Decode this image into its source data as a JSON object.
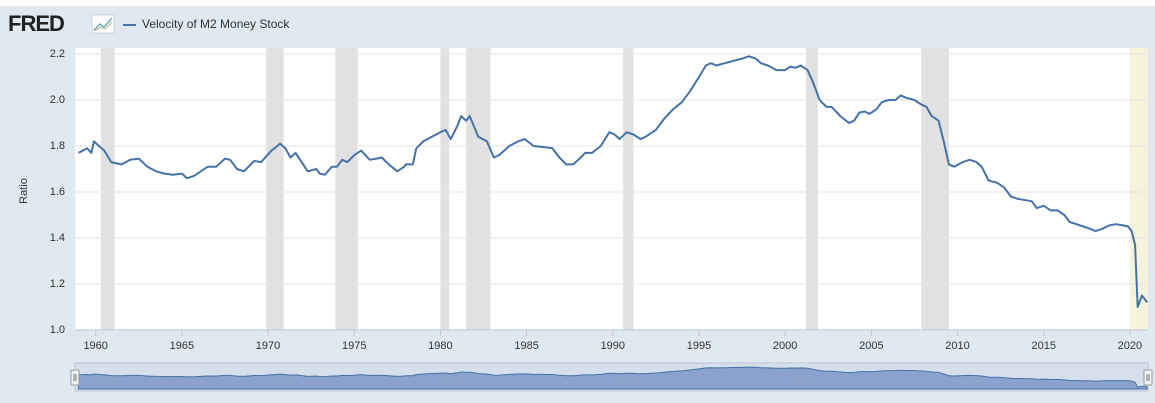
{
  "logo": "FRED",
  "chart_data": {
    "type": "line",
    "y_label": "Ratio",
    "xlim": [
      1958.8,
      2021.05
    ],
    "ylim": [
      1.0,
      2.2
    ],
    "xticks": [
      1960,
      1965,
      1970,
      1975,
      1980,
      1985,
      1990,
      1995,
      2000,
      2005,
      2010,
      2015,
      2020
    ],
    "yticks": [
      {
        "value": 1,
        "label": "1.0"
      },
      1.2,
      1.4,
      1.6,
      1.8,
      {
        "value": 2,
        "label": "2.0"
      },
      2.2
    ],
    "grid": true,
    "recessions": [
      [
        1960.3,
        1961.1
      ],
      [
        1969.9,
        1970.9
      ],
      [
        1973.9,
        1975.2
      ],
      [
        1980.0,
        1980.5
      ],
      [
        1981.5,
        1982.9
      ],
      [
        1990.6,
        1991.2
      ],
      [
        2001.2,
        2001.9
      ],
      [
        2007.9,
        2009.5
      ]
    ],
    "recession_color": "#e1e1e1",
    "highlight": [
      2020.0,
      2021.05
    ],
    "highlight_color": "#f6f3dc",
    "navigator_ticks": [
      1960,
      1970,
      1980,
      1990,
      2000,
      2010
    ],
    "x": [
      1959.0,
      1959.5,
      1959.75,
      1959.9,
      1960.5,
      1960.9,
      1961.5,
      1962.0,
      1962.5,
      1963.0,
      1963.5,
      1964.0,
      1964.5,
      1965.0,
      1965.3,
      1965.7,
      1966.5,
      1967.0,
      1967.5,
      1967.8,
      1968.2,
      1968.6,
      1969.2,
      1969.6,
      1970.2,
      1970.7,
      1971.0,
      1971.3,
      1971.6,
      1972.3,
      1972.8,
      1973.0,
      1973.3,
      1973.7,
      1974.0,
      1974.3,
      1974.6,
      1975.0,
      1975.4,
      1975.9,
      1976.3,
      1976.6,
      1977.0,
      1977.5,
      1977.9,
      1978.0,
      1978.4,
      1978.6,
      1979.0,
      1979.5,
      1980.0,
      1980.3,
      1980.6,
      1981.0,
      1981.2,
      1981.5,
      1981.7,
      1982.2,
      1982.7,
      1983.1,
      1983.4,
      1984.0,
      1984.5,
      1984.9,
      1985.4,
      1986.0,
      1986.5,
      1986.9,
      1987.3,
      1987.7,
      1988.0,
      1988.4,
      1988.8,
      1989.3,
      1989.8,
      1990.1,
      1990.4,
      1990.8,
      1991.2,
      1991.6,
      1991.9,
      1992.5,
      1993.0,
      1993.5,
      1994.0,
      1994.5,
      1995.0,
      1995.4,
      1995.7,
      1996.0,
      1996.5,
      1997.0,
      1997.5,
      1997.9,
      1998.3,
      1998.6,
      1999.0,
      1999.5,
      2000.0,
      2000.3,
      2000.6,
      2000.9,
      2001.3,
      2001.6,
      2002.0,
      2002.4,
      2002.7,
      2003.2,
      2003.7,
      2004.0,
      2004.3,
      2004.6,
      2004.9,
      2005.3,
      2005.6,
      2006.0,
      2006.4,
      2006.7,
      2007.0,
      2007.5,
      2007.9,
      2008.2,
      2008.5,
      2008.9,
      2009.2,
      2009.5,
      2009.8,
      2010.3,
      2010.7,
      2011.1,
      2011.4,
      2011.8,
      2012.3,
      2012.7,
      2013.1,
      2013.5,
      2013.9,
      2014.3,
      2014.6,
      2015.0,
      2015.4,
      2015.8,
      2016.2,
      2016.5,
      2016.9,
      2017.3,
      2017.7,
      2018.0,
      2018.4,
      2018.8,
      2019.2,
      2019.6,
      2019.9,
      2020.1,
      2020.3,
      2020.45,
      2020.7,
      2021.0
    ],
    "series": [
      {
        "name": "Velocity of M2 Money Stock",
        "color": "#4572a7",
        "values": [
          1.77,
          1.79,
          1.77,
          1.82,
          1.78,
          1.73,
          1.72,
          1.74,
          1.745,
          1.71,
          1.69,
          1.68,
          1.675,
          1.68,
          1.66,
          1.67,
          1.71,
          1.71,
          1.745,
          1.74,
          1.7,
          1.69,
          1.735,
          1.73,
          1.78,
          1.81,
          1.79,
          1.75,
          1.77,
          1.69,
          1.7,
          1.68,
          1.675,
          1.71,
          1.71,
          1.74,
          1.73,
          1.76,
          1.78,
          1.74,
          1.745,
          1.75,
          1.72,
          1.69,
          1.71,
          1.72,
          1.72,
          1.79,
          1.82,
          1.84,
          1.86,
          1.87,
          1.83,
          1.89,
          1.93,
          1.91,
          1.93,
          1.84,
          1.82,
          1.75,
          1.76,
          1.8,
          1.82,
          1.83,
          1.8,
          1.795,
          1.79,
          1.75,
          1.72,
          1.72,
          1.74,
          1.77,
          1.77,
          1.8,
          1.86,
          1.85,
          1.83,
          1.86,
          1.85,
          1.83,
          1.84,
          1.87,
          1.92,
          1.96,
          1.99,
          2.04,
          2.1,
          2.15,
          2.16,
          2.15,
          2.16,
          2.17,
          2.18,
          2.19,
          2.18,
          2.16,
          2.15,
          2.13,
          2.13,
          2.145,
          2.14,
          2.15,
          2.13,
          2.08,
          2.0,
          1.97,
          1.97,
          1.93,
          1.9,
          1.91,
          1.945,
          1.95,
          1.94,
          1.96,
          1.99,
          2.0,
          2.0,
          2.02,
          2.01,
          2.0,
          1.98,
          1.97,
          1.93,
          1.91,
          1.82,
          1.72,
          1.71,
          1.73,
          1.74,
          1.73,
          1.71,
          1.65,
          1.64,
          1.62,
          1.58,
          1.57,
          1.565,
          1.56,
          1.53,
          1.54,
          1.52,
          1.52,
          1.5,
          1.47,
          1.46,
          1.45,
          1.44,
          1.43,
          1.44,
          1.455,
          1.46,
          1.455,
          1.45,
          1.43,
          1.37,
          1.1,
          1.15,
          1.12
        ]
      }
    ]
  }
}
